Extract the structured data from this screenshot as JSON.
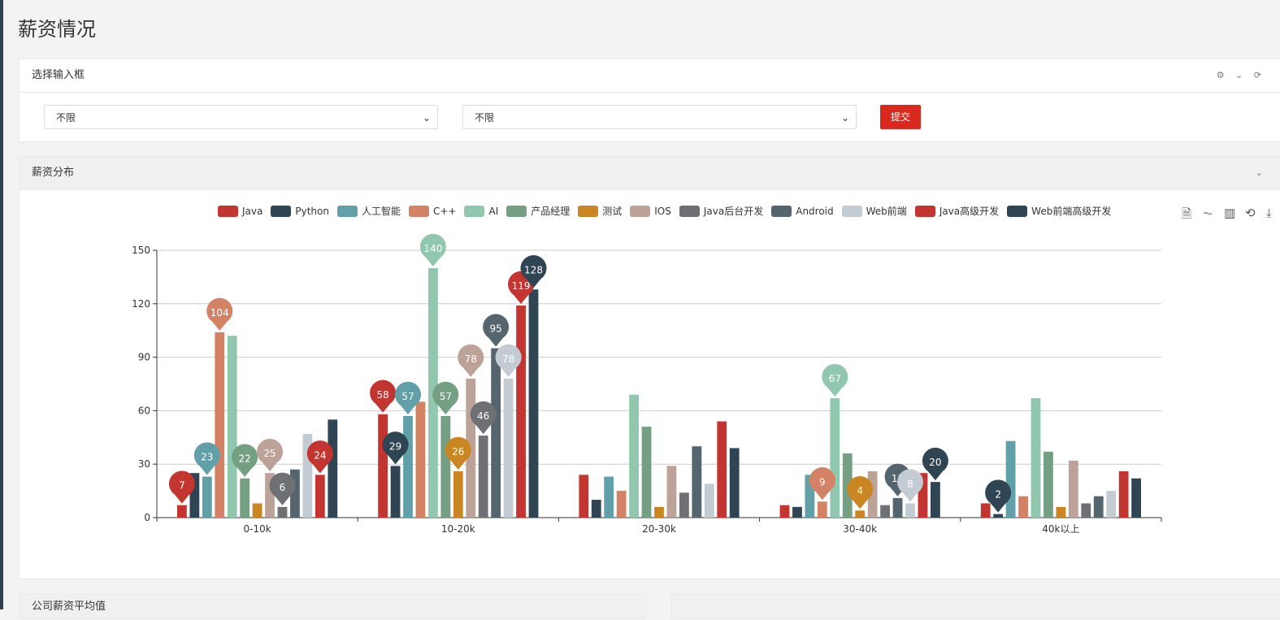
{
  "page": {
    "title": "薪资情况"
  },
  "filter_panel": {
    "title": "选择输入框",
    "select1_value": "不限",
    "select2_value": "不限",
    "submit_label": "提交"
  },
  "chart_panel": {
    "title": "薪资分布"
  },
  "bottom_panels": [
    {
      "title": "公司薪资平均值"
    },
    {
      "title": ""
    }
  ],
  "chart_data": {
    "type": "bar",
    "categories": [
      "0-10k",
      "10-20k",
      "20-30k",
      "30-40k",
      "40k以上"
    ],
    "ylim": [
      0,
      150
    ],
    "yticks": [
      0,
      30,
      60,
      90,
      120,
      150
    ],
    "grid": true,
    "legend_position": "top",
    "series": [
      {
        "name": "Java",
        "color": "#c23531",
        "values": [
          7,
          58,
          24,
          7,
          8
        ],
        "pins": [
          0,
          1
        ]
      },
      {
        "name": "Python",
        "color": "#2f4554",
        "values": [
          25,
          29,
          10,
          6,
          2
        ],
        "pins": [
          1,
          4
        ]
      },
      {
        "name": "人工智能",
        "color": "#61a0a8",
        "values": [
          23,
          57,
          23,
          24,
          43
        ],
        "pins": [
          0,
          1
        ]
      },
      {
        "name": "C++",
        "color": "#d48265",
        "values": [
          104,
          65,
          15,
          9,
          12
        ],
        "pins": [
          0,
          3
        ]
      },
      {
        "name": "AI",
        "color": "#91c7ae",
        "values": [
          102,
          140,
          69,
          67,
          67
        ],
        "pins": [
          1,
          3
        ]
      },
      {
        "name": "产品经理",
        "color": "#749f83",
        "values": [
          22,
          57,
          51,
          36,
          37
        ],
        "pins": [
          0,
          1
        ]
      },
      {
        "name": "测试",
        "color": "#ca8622",
        "values": [
          8,
          26,
          6,
          4,
          6
        ],
        "pins": [
          1,
          3
        ]
      },
      {
        "name": "IOS",
        "color": "#bda29a",
        "values": [
          25,
          78,
          29,
          26,
          32
        ],
        "pins": [
          0,
          1
        ]
      },
      {
        "name": "Java后台开发",
        "color": "#6e7074",
        "values": [
          6,
          46,
          14,
          7,
          8
        ],
        "pins": [
          0,
          1
        ]
      },
      {
        "name": "Android",
        "color": "#546570",
        "values": [
          27,
          95,
          40,
          11,
          12
        ],
        "pins": [
          1,
          3
        ]
      },
      {
        "name": "Web前端",
        "color": "#c4ccd3",
        "values": [
          47,
          78,
          19,
          8,
          15
        ],
        "pins": [
          1,
          3
        ]
      },
      {
        "name": "Java高级开发",
        "color": "#c23531",
        "values": [
          24,
          119,
          54,
          25,
          26
        ],
        "pins": [
          0,
          1
        ]
      },
      {
        "name": "Web前端高级开发",
        "color": "#2f4554",
        "values": [
          55,
          128,
          39,
          20,
          22
        ],
        "pins": [
          1,
          3
        ]
      }
    ]
  },
  "toolbox_icons": [
    "data-view-icon",
    "line-chart-icon",
    "bar-chart-icon",
    "restore-icon",
    "save-image-icon"
  ]
}
